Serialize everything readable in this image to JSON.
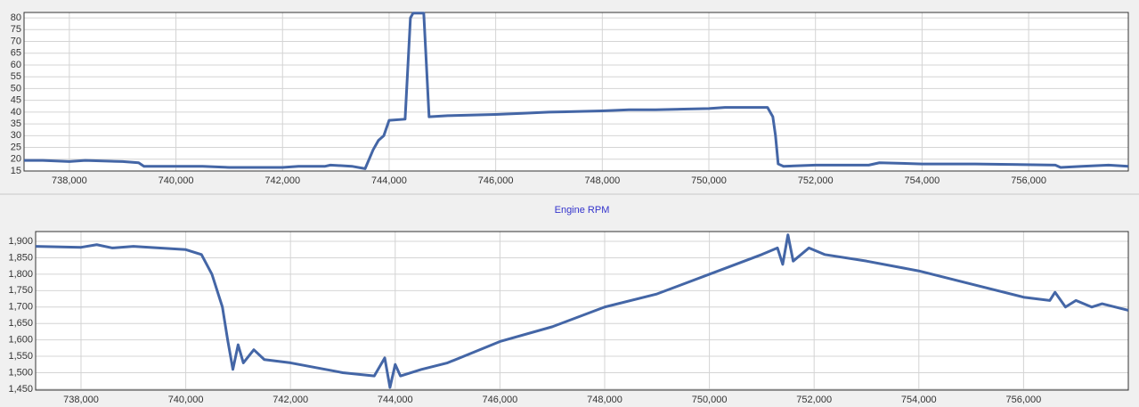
{
  "chart_data": [
    {
      "type": "line",
      "x": [
        737150,
        737500,
        738000,
        738300,
        739000,
        739300,
        739400,
        740500,
        741000,
        742000,
        742300,
        742800,
        742900,
        743300,
        743550,
        743700,
        743800,
        743900,
        744000,
        744300,
        744400,
        744450,
        744650,
        744700,
        744750,
        745100,
        746000,
        746500,
        747000,
        748000,
        748500,
        749000,
        750000,
        750300,
        751100,
        751200,
        751250,
        751300,
        751400,
        752000,
        753000,
        753200,
        754000,
        755000,
        756500,
        756600,
        757000,
        757500,
        757870
      ],
      "series": [
        {
          "color": "#4466a6",
          "values": [
            19.5,
            19.5,
            19,
            19.5,
            19,
            18.5,
            17,
            17,
            16.5,
            16.5,
            17,
            17,
            17.5,
            17,
            16,
            24,
            28,
            30,
            36.5,
            37,
            80,
            82,
            82,
            60,
            38,
            38.5,
            39,
            39.5,
            40,
            40.5,
            41,
            41,
            41.5,
            42,
            42,
            38,
            30,
            18,
            17,
            17.5,
            17.5,
            18.5,
            18,
            18,
            17.5,
            16.5,
            17,
            17.5,
            17
          ]
        }
      ],
      "xlim": [
        737150,
        757870
      ],
      "ylim": [
        15,
        82.3
      ],
      "xticks": [
        {
          "value": 738000,
          "label": "738,000"
        },
        {
          "value": 740000,
          "label": "740,000"
        },
        {
          "value": 742000,
          "label": "742,000"
        },
        {
          "value": 744000,
          "label": "744,000"
        },
        {
          "value": 746000,
          "label": "746,000"
        },
        {
          "value": 748000,
          "label": "748,000"
        },
        {
          "value": 750000,
          "label": "750,000"
        },
        {
          "value": 752000,
          "label": "752,000"
        },
        {
          "value": 754000,
          "label": "754,000"
        },
        {
          "value": 756000,
          "label": "756,000"
        }
      ],
      "yticks": [
        15,
        20,
        25,
        30,
        35,
        40,
        45,
        50,
        55,
        60,
        65,
        70,
        75,
        80
      ],
      "grid": true
    },
    {
      "type": "line",
      "title": "Engine RPM",
      "x": [
        737133,
        738000,
        738300,
        738600,
        739000,
        740000,
        740300,
        740500,
        740700,
        740800,
        740900,
        741000,
        741100,
        741300,
        741500,
        742000,
        742500,
        743000,
        743600,
        743800,
        743900,
        744000,
        744100,
        744500,
        745000,
        746000,
        747000,
        748000,
        749000,
        750000,
        751000,
        751300,
        751400,
        751500,
        751600,
        751900,
        752200,
        753000,
        754000,
        755000,
        756000,
        756500,
        756600,
        756800,
        757000,
        757300,
        757500,
        758000
      ],
      "series": [
        {
          "color": "#4466a6",
          "values": [
            1885,
            1882,
            1890,
            1880,
            1885,
            1875,
            1860,
            1800,
            1700,
            1600,
            1510,
            1585,
            1530,
            1570,
            1540,
            1530,
            1515,
            1500,
            1490,
            1545,
            1455,
            1525,
            1490,
            1510,
            1530,
            1595,
            1640,
            1700,
            1740,
            1800,
            1860,
            1880,
            1830,
            1920,
            1840,
            1880,
            1860,
            1840,
            1810,
            1770,
            1730,
            1720,
            1745,
            1700,
            1720,
            1700,
            1710,
            1690
          ]
        }
      ],
      "xlim": [
        737133,
        758000
      ],
      "ylim": [
        1447,
        1930
      ],
      "xticks": [
        {
          "value": 738000,
          "label": "738,000"
        },
        {
          "value": 740000,
          "label": "740,000"
        },
        {
          "value": 742000,
          "label": "742,000"
        },
        {
          "value": 744000,
          "label": "744,000"
        },
        {
          "value": 746000,
          "label": "746,000"
        },
        {
          "value": 748000,
          "label": "748,000"
        },
        {
          "value": 750000,
          "label": "750,000"
        },
        {
          "value": 752000,
          "label": "752,000"
        },
        {
          "value": 754000,
          "label": "754,000"
        },
        {
          "value": 756000,
          "label": "756,000"
        }
      ],
      "yticks": [
        {
          "value": 1450,
          "label": "1,450"
        },
        {
          "value": 1500,
          "label": "1,500"
        },
        {
          "value": 1550,
          "label": "1,550"
        },
        {
          "value": 1600,
          "label": "1,600"
        },
        {
          "value": 1650,
          "label": "1,650"
        },
        {
          "value": 1700,
          "label": "1,700"
        },
        {
          "value": 1750,
          "label": "1,750"
        },
        {
          "value": 1800,
          "label": "1,800"
        },
        {
          "value": 1850,
          "label": "1,850"
        },
        {
          "value": 1900,
          "label": "1,900"
        }
      ],
      "grid": true
    }
  ]
}
